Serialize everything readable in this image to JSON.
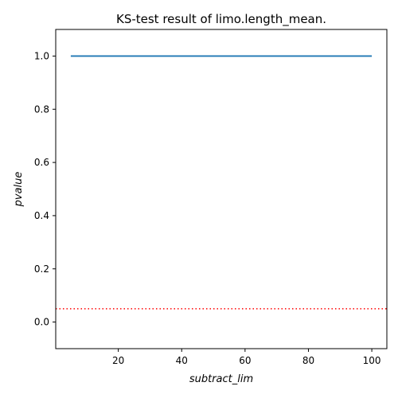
{
  "chart_data": {
    "type": "line",
    "title": "KS-test result of limo.length_mean.",
    "xlabel": "subtract_lim",
    "ylabel": "pvalue",
    "xlim": [
      0.25,
      104.75
    ],
    "ylim": [
      -0.1,
      1.1
    ],
    "x_ticks": [
      20,
      40,
      60,
      80,
      100
    ],
    "y_ticks": [
      0.0,
      0.2,
      0.4,
      0.6,
      0.8,
      1.0
    ],
    "x_tick_labels": [
      "20",
      "40",
      "60",
      "80",
      "100"
    ],
    "y_tick_labels": [
      "0.0",
      "0.2",
      "0.4",
      "0.6",
      "0.8",
      "1.0"
    ],
    "grid": false,
    "series": [
      {
        "color": "#1f77b4",
        "x": [
          5,
          100
        ],
        "y": [
          1.0,
          1.0
        ]
      }
    ],
    "reference_lines": [
      {
        "orientation": "horizontal",
        "y": 0.05,
        "color": "#ff0000",
        "style": "dotted"
      }
    ]
  }
}
